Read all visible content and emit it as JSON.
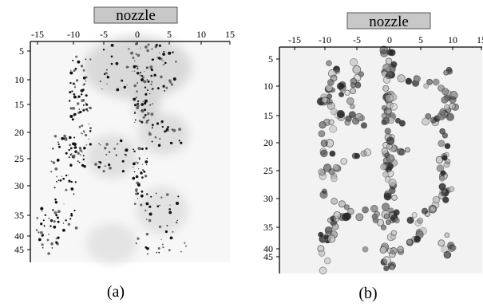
{
  "figure": {
    "panels": [
      {
        "id": "a",
        "nozzle_label": "nozzle",
        "caption": "(a)",
        "x_ticks": [
          "-15",
          "-10",
          "-5",
          "0",
          "5",
          "10",
          "15"
        ],
        "y_ticks": [
          "5",
          "10",
          "15",
          "20",
          "25",
          "30",
          "35",
          "40",
          "45"
        ]
      },
      {
        "id": "b",
        "nozzle_label": "nozzle",
        "caption": "(b)",
        "x_ticks": [
          "-15",
          "-10",
          "-5",
          "0",
          "5",
          "10",
          "15"
        ],
        "y_ticks": [
          "5",
          "10",
          "15",
          "20",
          "25",
          "30",
          "35",
          "40",
          "45"
        ]
      }
    ]
  },
  "colors": {
    "label_box_fill": "#c8c8c8",
    "panel_b_background": "#f2f2f2",
    "panel_a_background": "#f7f7f7",
    "ink": "#000000"
  }
}
